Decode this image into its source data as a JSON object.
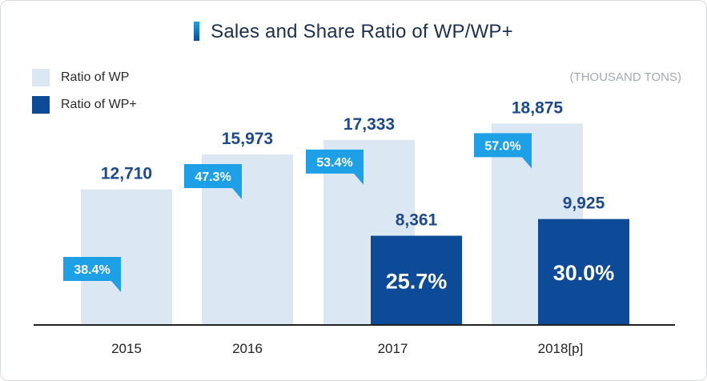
{
  "chart_data": {
    "type": "bar",
    "title": "Sales and Share Ratio of WP/WP+",
    "unit_label": "(THOUSAND TONS)",
    "categories": [
      "2015",
      "2016",
      "2017",
      "2018[p]"
    ],
    "series": [
      {
        "name": "Ratio of WP",
        "color": "#dce7f4",
        "values": [
          12710,
          15973,
          17333,
          18875
        ],
        "value_labels": [
          "12,710",
          "15,973",
          "17,333",
          "18,875"
        ],
        "share_labels": [
          "38.4%",
          "47.3%",
          "53.4%",
          "57.0%"
        ]
      },
      {
        "name": "Ratio of WP+",
        "color": "#0d4b98",
        "values": [
          null,
          null,
          8361,
          9925
        ],
        "value_labels": [
          "",
          "",
          "8,361",
          "9,925"
        ],
        "share_labels": [
          "",
          "",
          "25.7%",
          "30.0%"
        ]
      }
    ],
    "ylim": [
      0,
      21000
    ],
    "legend_position": "top-left",
    "grid": false,
    "colors": {
      "callout": "#1ea0e6",
      "value_text": "#1c4a8c",
      "axis": "#222222"
    }
  }
}
